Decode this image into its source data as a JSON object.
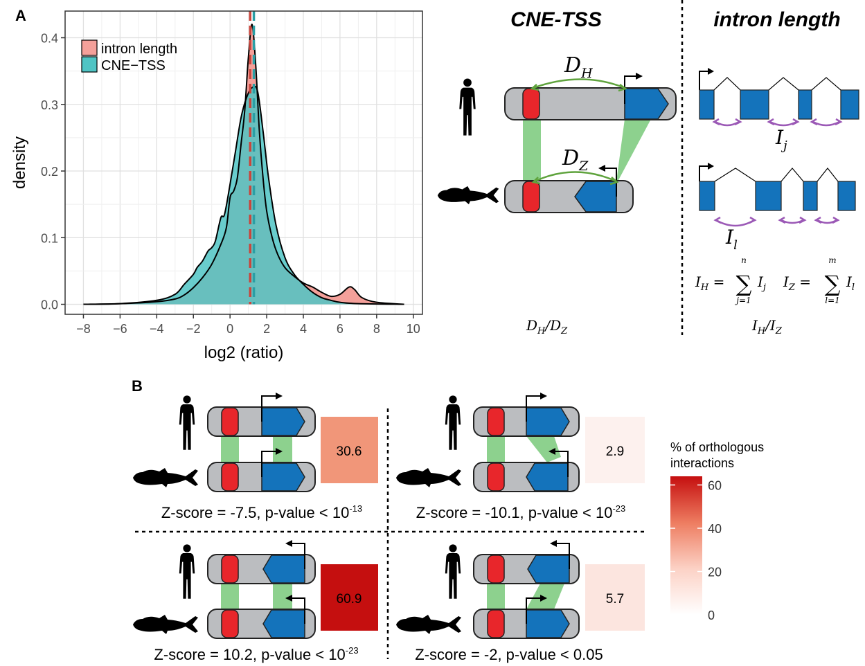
{
  "panel_a": {
    "label": "A",
    "chart_data": {
      "type": "area",
      "xlabel": "log2 (ratio)",
      "ylabel": "density",
      "xlim": [
        -9,
        10.5
      ],
      "ylim": [
        -0.015,
        0.44
      ],
      "xticks": [
        -8,
        -6,
        -4,
        -2,
        0,
        2,
        4,
        6,
        8,
        10
      ],
      "yticks": [
        0.0,
        0.1,
        0.2,
        0.3,
        0.4
      ],
      "ytick_labels": [
        "0.0",
        "0.1",
        "0.2",
        "0.3",
        "0.4"
      ],
      "grid": true,
      "legend_position": "top-left",
      "series": [
        {
          "name": "intron length",
          "color": "#F4A09A",
          "vline": 1.1,
          "vline_color": "#C9453C",
          "points": [
            [
              -8,
              0
            ],
            [
              -6,
              0.001
            ],
            [
              -4,
              0.004
            ],
            [
              -3,
              0.008
            ],
            [
              -2.5,
              0.014
            ],
            [
              -2,
              0.025
            ],
            [
              -1.5,
              0.04
            ],
            [
              -1,
              0.06
            ],
            [
              -0.5,
              0.09
            ],
            [
              -0.2,
              0.115
            ],
            [
              0,
              0.16
            ],
            [
              0.2,
              0.17
            ],
            [
              0.4,
              0.19
            ],
            [
              0.6,
              0.24
            ],
            [
              0.8,
              0.29
            ],
            [
              1.0,
              0.37
            ],
            [
              1.2,
              0.42
            ],
            [
              1.4,
              0.36
            ],
            [
              1.6,
              0.26
            ],
            [
              1.8,
              0.19
            ],
            [
              2.0,
              0.14
            ],
            [
              2.3,
              0.1
            ],
            [
              2.6,
              0.075
            ],
            [
              3.0,
              0.055
            ],
            [
              3.5,
              0.042
            ],
            [
              4.0,
              0.032
            ],
            [
              4.5,
              0.026
            ],
            [
              5.0,
              0.018
            ],
            [
              5.5,
              0.012
            ],
            [
              6.0,
              0.015
            ],
            [
              6.5,
              0.026
            ],
            [
              6.8,
              0.022
            ],
            [
              7.2,
              0.01
            ],
            [
              8,
              0.003
            ],
            [
              9.5,
              0
            ]
          ]
        },
        {
          "name": "CNE−TSS",
          "color": "#4FC4C4",
          "vline": 1.3,
          "vline_color": "#2A9FA5",
          "points": [
            [
              -8,
              0
            ],
            [
              -6,
              0.001
            ],
            [
              -4,
              0.006
            ],
            [
              -3,
              0.015
            ],
            [
              -2.5,
              0.03
            ],
            [
              -2,
              0.045
            ],
            [
              -1.8,
              0.055
            ],
            [
              -1.5,
              0.065
            ],
            [
              -1.2,
              0.08
            ],
            [
              -1,
              0.085
            ],
            [
              -0.8,
              0.095
            ],
            [
              -0.5,
              0.13
            ],
            [
              -0.3,
              0.135
            ],
            [
              0,
              0.18
            ],
            [
              0.3,
              0.23
            ],
            [
              0.6,
              0.28
            ],
            [
              0.9,
              0.31
            ],
            [
              1.2,
              0.325
            ],
            [
              1.5,
              0.32
            ],
            [
              1.8,
              0.26
            ],
            [
              2.1,
              0.19
            ],
            [
              2.5,
              0.12
            ],
            [
              3.0,
              0.07
            ],
            [
              3.5,
              0.045
            ],
            [
              4.0,
              0.03
            ],
            [
              4.5,
              0.018
            ],
            [
              5.0,
              0.01
            ],
            [
              5.5,
              0.006
            ],
            [
              6.0,
              0.003
            ],
            [
              7,
              0.001
            ],
            [
              9.5,
              0
            ]
          ]
        }
      ]
    }
  },
  "cne_tss": {
    "header": "CNE-TSS",
    "d_h": "D",
    "d_h_sub": "H",
    "d_z": "D",
    "d_z_sub": "Z",
    "ratio": "D",
    "ratio_sub_1": "H",
    "ratio_mid": "/D",
    "ratio_sub_2": "Z"
  },
  "intron": {
    "header": "intron length",
    "i_j": "I",
    "i_j_sub": "j",
    "i_l": "I",
    "i_l_sub": "l",
    "formula_ih": "I",
    "formula_ih_sub": "H",
    "formula_eq": " = ",
    "formula_top_n": "n",
    "formula_bottom_j": "j=1",
    "formula_ij": "I",
    "formula_ij_sub": "j",
    "formula_iz": "I",
    "formula_iz_sub": "Z",
    "formula_top_m": "m",
    "formula_bottom_l": "l=1",
    "formula_il": "I",
    "formula_il_sub": "l",
    "ratio": "I",
    "ratio_sub_1": "H",
    "ratio_mid": "/I",
    "ratio_sub_2": "Z"
  },
  "panel_b": {
    "label": "B",
    "colors": {
      "cne": "#E8262B",
      "gene": "#1473BB",
      "chrom": "#BBBDC0",
      "link": "#8DD18E",
      "arrow_purple": "#9B59B6",
      "heat_high": "#C50F0F"
    },
    "quadrants": [
      {
        "value": "30.6",
        "value_num": 30.6,
        "fill": "#F19679",
        "caption": "Z-score = -7.5, p-value < 10",
        "exp": "-13"
      },
      {
        "value": "2.9",
        "value_num": 2.9,
        "fill": "#FDF1EE",
        "caption": "Z-score = -10.1, p-value < 10",
        "exp": "-23"
      },
      {
        "value": "60.9",
        "value_num": 60.9,
        "fill": "#C50F0F",
        "caption": "Z-score = 10.2, p-value < 10",
        "exp": "-23"
      },
      {
        "value": "5.7",
        "value_num": 5.7,
        "fill": "#FCE5DF",
        "caption": "Z-score = -2, p-value < 0.05",
        "exp": ""
      }
    ],
    "legend": {
      "title_1": "% of orthologous",
      "title_2": "interactions",
      "ticks": [
        "60",
        "40",
        "20",
        "0"
      ],
      "tick_values": [
        60,
        40,
        20,
        0
      ]
    }
  }
}
